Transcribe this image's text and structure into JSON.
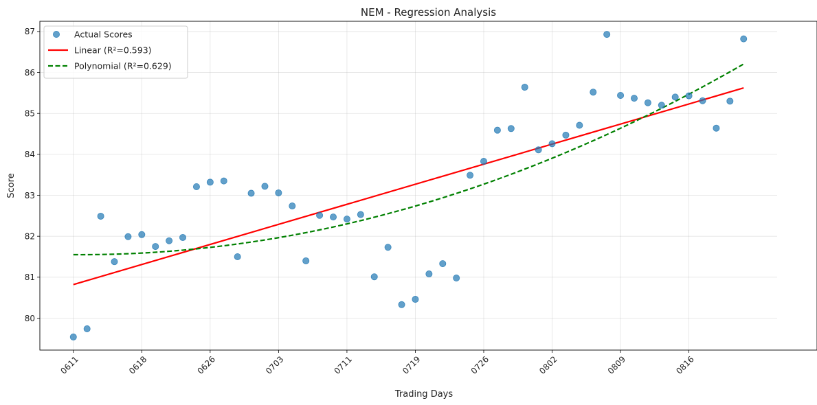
{
  "chart_data": {
    "type": "scatter",
    "title": "NEM - Regression Analysis",
    "xlabel": "Trading Days",
    "ylabel": "Score",
    "x_ticks": [
      {
        "index": 0,
        "label": "0611"
      },
      {
        "index": 5,
        "label": "0618"
      },
      {
        "index": 10,
        "label": "0626"
      },
      {
        "index": 15,
        "label": "0703"
      },
      {
        "index": 20,
        "label": "0711"
      },
      {
        "index": 25,
        "label": "0719"
      },
      {
        "index": 30,
        "label": "0726"
      },
      {
        "index": 35,
        "label": "0802"
      },
      {
        "index": 40,
        "label": "0809"
      },
      {
        "index": 45,
        "label": "0816"
      }
    ],
    "y_ticks": [
      80,
      81,
      82,
      83,
      84,
      85,
      86,
      87
    ],
    "xlim": [
      -2.45,
      51.45
    ],
    "ylim": [
      79.22,
      87.25
    ],
    "grid": true,
    "legend_position": "upper left",
    "series": [
      {
        "name": "Actual Scores",
        "kind": "scatter",
        "color": "#1f77b4",
        "x": [
          0,
          1,
          2,
          3,
          4,
          5,
          6,
          7,
          8,
          9,
          10,
          11,
          12,
          13,
          14,
          15,
          16,
          17,
          18,
          19,
          20,
          21,
          22,
          23,
          24,
          25,
          26,
          27,
          28,
          29,
          30,
          31,
          32,
          33,
          34,
          35,
          36,
          37,
          38,
          39,
          40,
          41,
          42,
          43,
          44,
          45,
          46,
          47,
          48,
          49
        ],
        "y": [
          79.54,
          79.74,
          82.49,
          81.38,
          81.99,
          82.04,
          81.75,
          81.89,
          81.97,
          83.21,
          83.32,
          83.35,
          81.5,
          83.05,
          83.22,
          83.06,
          82.74,
          81.4,
          82.51,
          82.47,
          82.42,
          82.53,
          81.01,
          81.73,
          80.33,
          80.46,
          81.08,
          81.33,
          80.98,
          83.49,
          83.83,
          84.59,
          84.63,
          85.64,
          84.11,
          84.26,
          84.47,
          84.71,
          85.52,
          86.93,
          85.44,
          85.37,
          85.26,
          85.2,
          85.4,
          85.43,
          85.31,
          84.64,
          85.3,
          86.82
        ]
      },
      {
        "name": "Linear (R²=0.593)",
        "kind": "line",
        "color": "#ff0000",
        "style": "solid",
        "x_range": [
          0,
          49
        ],
        "coefficients": {
          "intercept": 80.82,
          "slope": 0.098
        }
      },
      {
        "name": "Polynomial (R²=0.629)",
        "kind": "line",
        "color": "#008000",
        "style": "dashed",
        "x_range": [
          0,
          49
        ],
        "coefficients": {
          "c0": 81.55,
          "c1": -0.002,
          "c2": 0.00198
        }
      }
    ]
  }
}
